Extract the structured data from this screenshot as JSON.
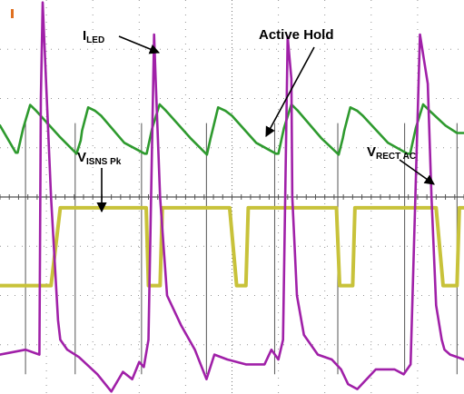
{
  "chart_data": {
    "type": "line",
    "title": "",
    "xlabel": "",
    "ylabel": "",
    "grid": true,
    "grid_divisions": {
      "x": 10,
      "y": 8
    },
    "colors": {
      "i_led": "#2e9a2e",
      "v_isns": "#c8c23a",
      "v_rect": "#a020a8",
      "gate": "#4a4a4a",
      "grid": "#7a7a7a",
      "trigger_marker": "#e07020"
    },
    "series": [
      {
        "key": "i_led",
        "color": "#2e9a2e",
        "x": [
          0,
          0.34,
          0.38,
          0.5,
          0.65,
          0.78,
          1.28,
          1.65,
          1.74,
          1.77,
          1.9,
          2.05,
          2.18,
          2.68,
          3.12,
          3.16,
          3.28,
          3.44,
          3.58,
          4.1,
          4.46,
          4.54,
          4.58,
          4.7,
          4.86,
          5.0,
          5.52,
          5.95,
          6.0,
          6.12,
          6.28,
          6.42,
          6.92,
          7.3,
          7.39,
          7.42,
          7.55,
          7.7,
          7.82,
          8.36,
          8.78,
          8.84,
          8.96,
          9.12,
          9.26,
          9.6,
          9.85,
          10.0
        ],
        "y": [
          1.45,
          0.9,
          0.9,
          1.4,
          1.87,
          1.75,
          1.23,
          0.88,
          1.15,
          1.35,
          1.82,
          1.75,
          1.65,
          1.1,
          0.88,
          0.88,
          1.4,
          1.88,
          1.75,
          1.2,
          0.86,
          1.2,
          1.35,
          1.82,
          1.75,
          1.65,
          1.1,
          0.88,
          0.88,
          1.4,
          1.88,
          1.75,
          1.2,
          0.86,
          1.2,
          1.35,
          1.82,
          1.75,
          1.65,
          1.1,
          0.88,
          0.88,
          1.4,
          1.88,
          1.75,
          1.45,
          1.3,
          1.3
        ]
      },
      {
        "key": "v_isns",
        "color": "#c8c23a",
        "x": [
          0,
          0.95,
          1.1,
          1.3,
          1.35,
          3.05,
          3.15,
          3.2,
          3.45,
          3.5,
          4.95,
          5.1,
          5.3,
          5.35,
          7.25,
          7.32,
          7.6,
          7.65,
          9.4,
          9.55,
          9.85,
          9.9,
          10.0
        ],
        "y": [
          -1.8,
          -1.8,
          -1.8,
          -0.22,
          -0.22,
          -0.22,
          -0.22,
          -1.8,
          -1.8,
          -0.22,
          -0.22,
          -1.8,
          -1.8,
          -0.22,
          -0.22,
          -1.8,
          -1.8,
          -0.22,
          -0.22,
          -1.8,
          -1.8,
          -0.22,
          -0.22
        ]
      },
      {
        "key": "v_rect",
        "color": "#a020a8",
        "x": [
          0,
          0.55,
          0.85,
          0.88,
          0.92,
          0.95,
          1.1,
          1.25,
          1.3,
          1.45,
          1.7,
          2.1,
          2.4,
          2.65,
          2.85,
          3.0,
          3.1,
          3.2,
          3.32,
          3.35,
          3.45,
          3.6,
          3.9,
          4.2,
          4.45,
          4.62,
          4.9,
          5.3,
          5.7,
          5.85,
          6.0,
          6.1,
          6.2,
          6.28,
          6.3,
          6.4,
          6.55,
          6.85,
          7.15,
          7.35,
          7.5,
          7.7,
          8.1,
          8.5,
          8.7,
          8.85,
          9.05,
          9.22,
          9.3,
          9.4,
          9.52,
          9.58,
          9.7,
          10.0
        ],
        "y": [
          -3.2,
          -3.1,
          -3.2,
          2.0,
          3.95,
          3.3,
          0.0,
          -2.5,
          -2.9,
          -3.1,
          -3.25,
          -3.6,
          -3.95,
          -3.55,
          -3.7,
          -3.35,
          -3.45,
          -2.9,
          3.3,
          2.5,
          0.0,
          -2.0,
          -2.6,
          -3.1,
          -3.7,
          -3.2,
          -3.3,
          -3.4,
          -3.4,
          -3.1,
          -3.3,
          -2.9,
          3.25,
          2.4,
          0.0,
          -2.0,
          -2.8,
          -3.2,
          -3.3,
          -3.5,
          -3.8,
          -3.9,
          -3.5,
          -3.5,
          -3.6,
          -3.4,
          3.3,
          2.3,
          0.0,
          -2.2,
          -2.9,
          -3.1,
          -3.2,
          -3.3
        ]
      }
    ],
    "gate_pulses": [
      0.55,
      1.62,
      3.05,
      4.45,
      5.92,
      7.28,
      8.72,
      9.85
    ],
    "annotations": [
      {
        "key": "i_led",
        "main": "I",
        "sub": "LED"
      },
      {
        "key": "active_hold",
        "main": "Active Hold",
        "sub": ""
      },
      {
        "key": "v_isns",
        "main": "V",
        "sub": "ISNS Pk"
      },
      {
        "key": "v_rect",
        "main": "V",
        "sub": "RECT AC"
      }
    ]
  }
}
